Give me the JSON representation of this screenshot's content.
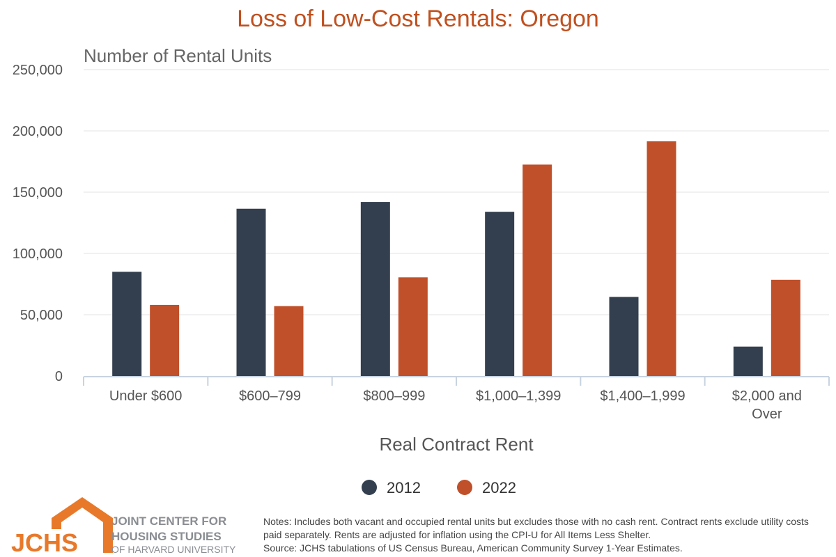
{
  "chart_data": {
    "type": "bar",
    "title": "Loss of Low-Cost Rentals: Oregon",
    "ylabel": "Number of Rental Units",
    "xlabel": "Real Contract Rent",
    "ylim": [
      0,
      250000
    ],
    "yticks": [
      0,
      50000,
      100000,
      150000,
      200000,
      250000
    ],
    "ytick_labels": [
      "0",
      "50,000",
      "100,000",
      "150,000",
      "200,000",
      "250,000"
    ],
    "grid": true,
    "legend_position": "bottom",
    "categories": [
      "Under $600",
      "$600–799",
      "$800–999",
      "$1,000–1,399",
      "$1,400–1,999",
      "$2,000 and Over"
    ],
    "category_lines": [
      [
        "Under $600"
      ],
      [
        "$600–799"
      ],
      [
        "$800–999"
      ],
      [
        "$1,000–1,399"
      ],
      [
        "$1,400–1,999"
      ],
      [
        "$2,000 and",
        "Over"
      ]
    ],
    "series": [
      {
        "name": "2012",
        "color": "#333f4e",
        "values": [
          85000,
          136500,
          142000,
          134000,
          64500,
          24000
        ]
      },
      {
        "name": "2022",
        "color": "#c0502a",
        "values": [
          58000,
          57000,
          80500,
          172500,
          191500,
          78500
        ]
      }
    ]
  },
  "logo": {
    "letters": "JCHS",
    "line1": "JOINT CENTER FOR",
    "line2": "HOUSING STUDIES",
    "line3": "OF HARVARD UNIVERSITY"
  },
  "notes": {
    "line1": "Notes: Includes both vacant and occupied rental units but excludes those with no cash rent. Contract rents exclude utility costs paid separately. Rents are adjusted for inflation using the CPI-U for All Items Less Shelter.",
    "line2": "Source: JCHS tabulations of US Census Bureau, American Community Survey 1-Year Estimates."
  },
  "colors": {
    "title": "#c0501f",
    "logo": "#e8792a"
  }
}
